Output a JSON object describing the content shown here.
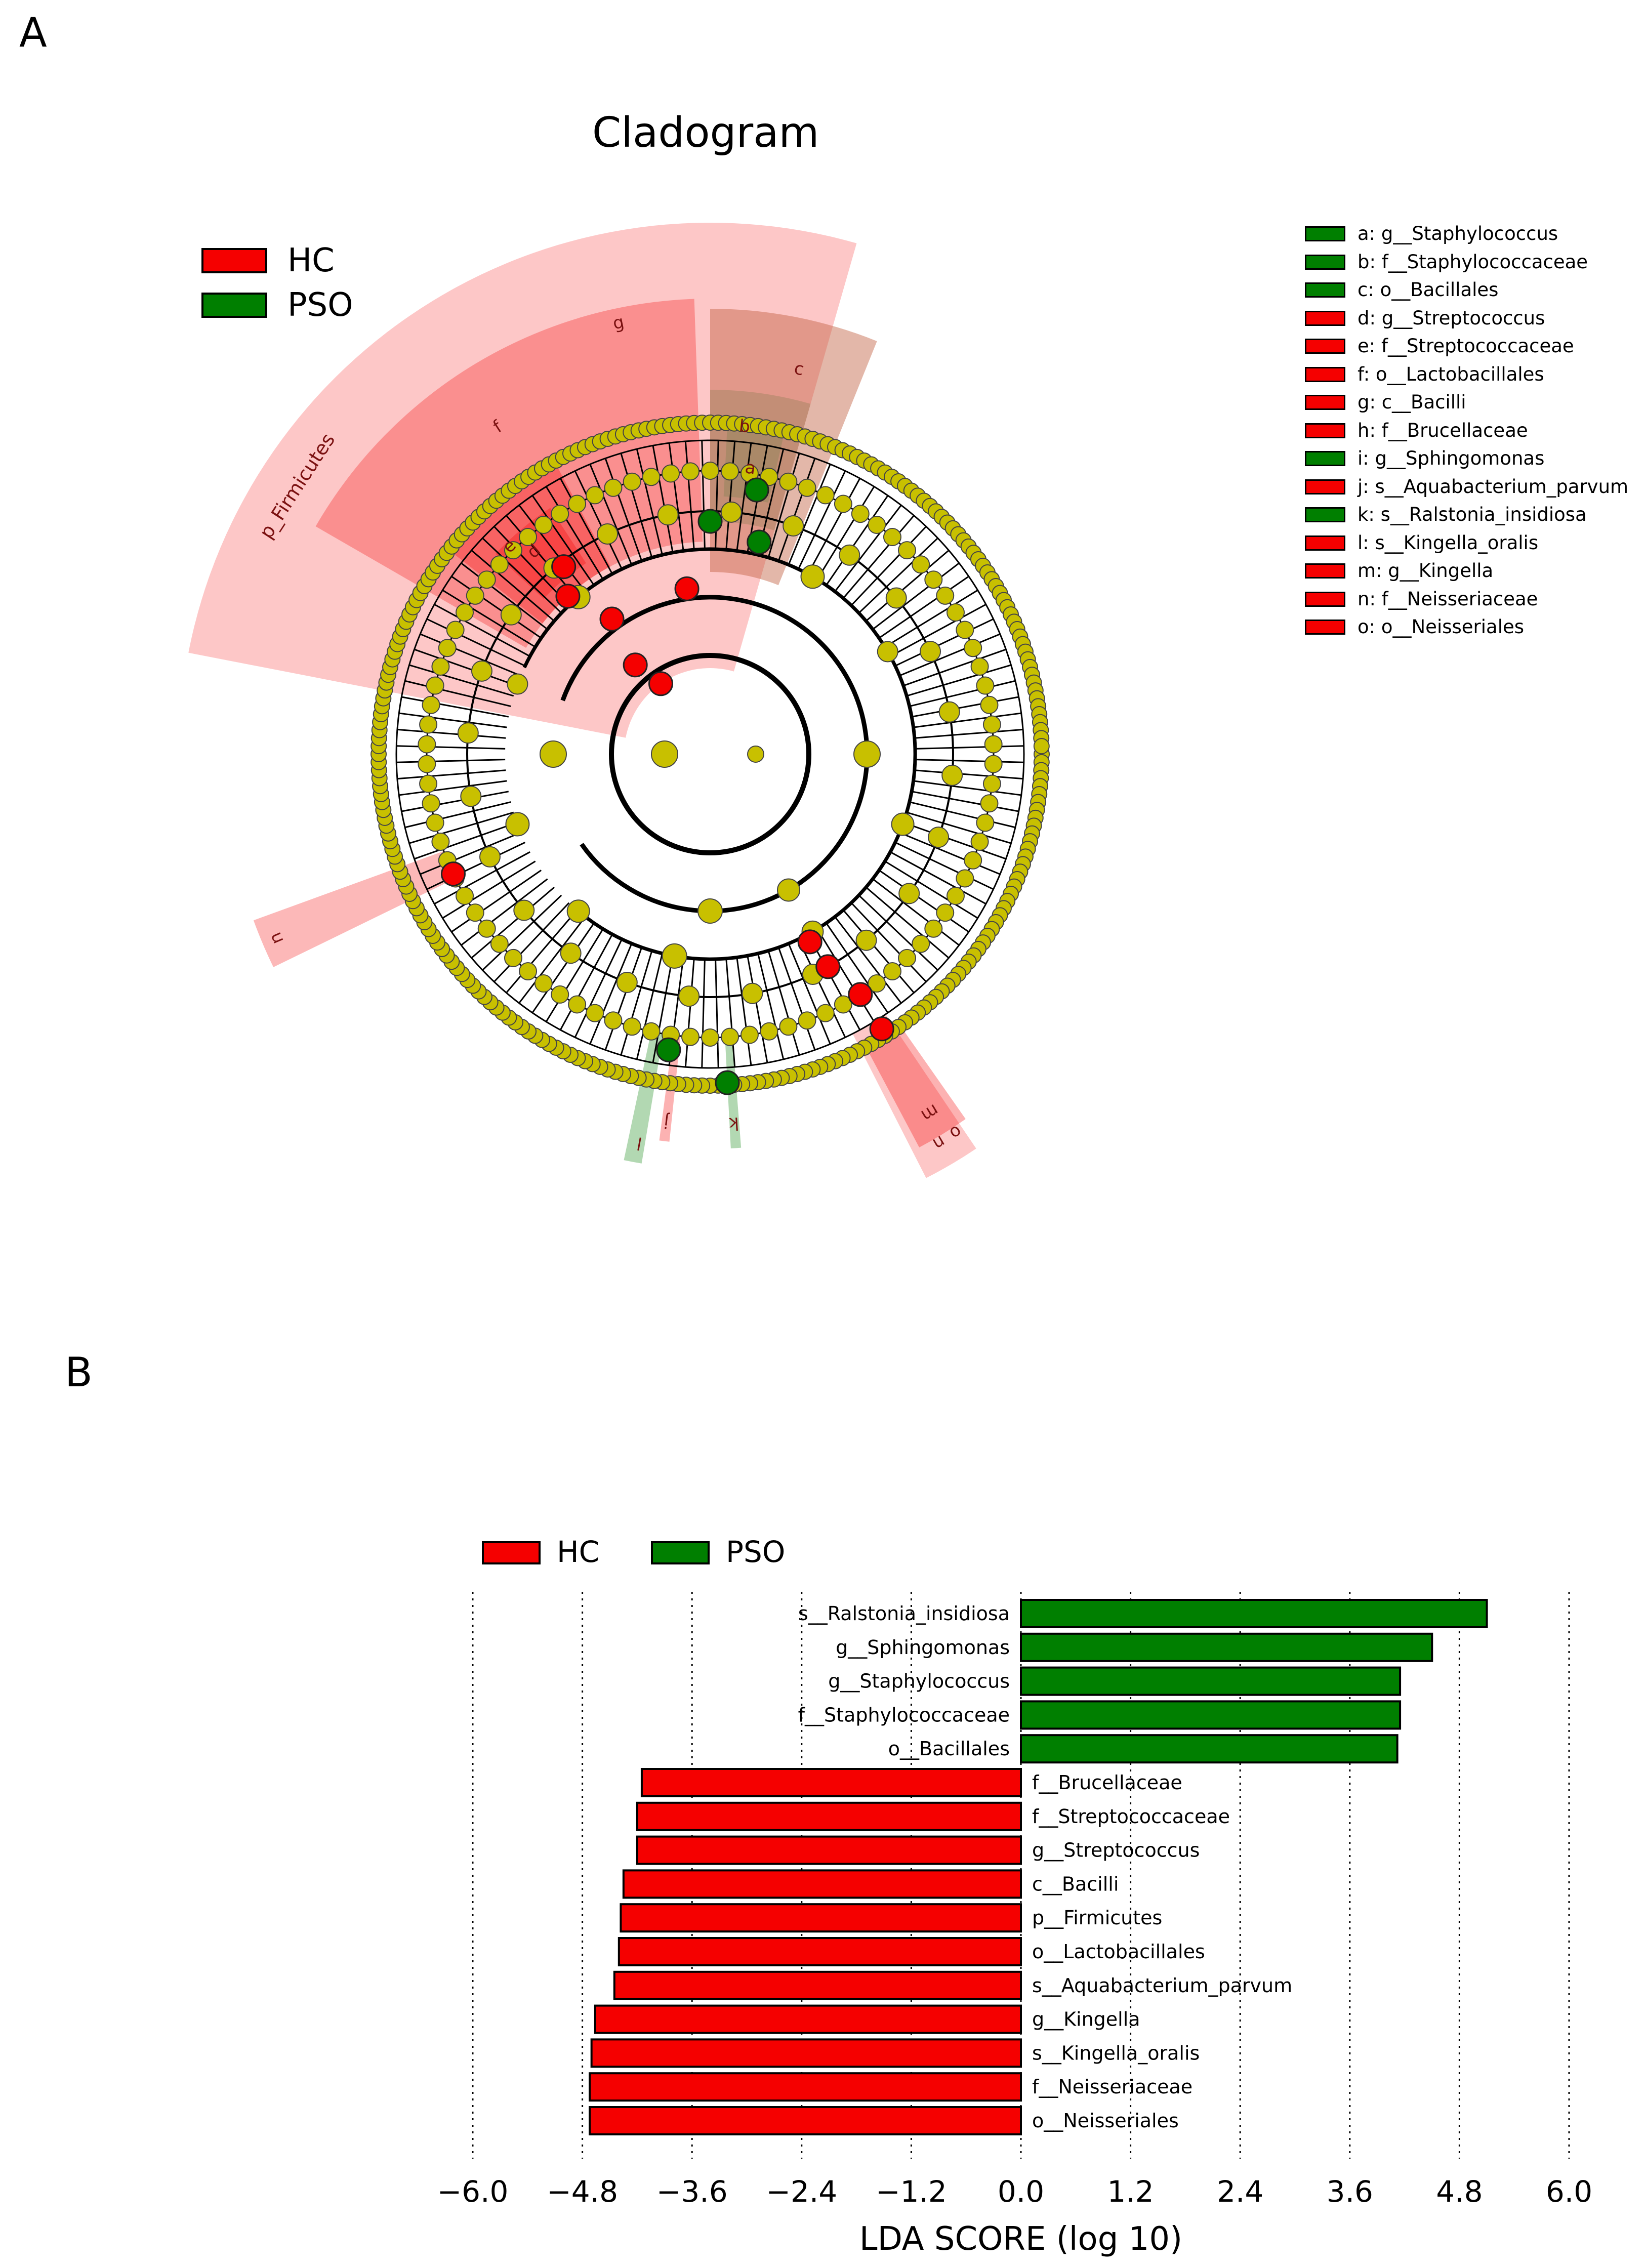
{
  "panels": {
    "a": "A",
    "b": "B"
  },
  "cladogram": {
    "title": "Cladogram",
    "legend": [
      {
        "label": "HC",
        "color": "#f50000"
      },
      {
        "label": "PSO",
        "color": "#007f00"
      }
    ],
    "phylum_label": "p_Firmicutes",
    "sector_letters": [
      "a",
      "b",
      "c",
      "d",
      "e",
      "f",
      "g",
      "l",
      "j",
      "k",
      "m",
      "n",
      "o",
      "n"
    ],
    "key": [
      {
        "text": "a: g__Staphylococcus",
        "group": "PSO"
      },
      {
        "text": "b: f__Staphylococcaceae",
        "group": "PSO"
      },
      {
        "text": "c: o__Bacillales",
        "group": "PSO"
      },
      {
        "text": "d: g__Streptococcus",
        "group": "HC"
      },
      {
        "text": "e: f__Streptococcaceae",
        "group": "HC"
      },
      {
        "text": "f: o__Lactobacillales",
        "group": "HC"
      },
      {
        "text": "g: c__Bacilli",
        "group": "HC"
      },
      {
        "text": "h: f__Brucellaceae",
        "group": "HC"
      },
      {
        "text": "i: g__Sphingomonas",
        "group": "PSO"
      },
      {
        "text": "j: s__Aquabacterium_parvum",
        "group": "HC"
      },
      {
        "text": "k: s__Ralstonia_insidiosa",
        "group": "PSO"
      },
      {
        "text": "l: s__Kingella_oralis",
        "group": "HC"
      },
      {
        "text": "m: g__Kingella",
        "group": "HC"
      },
      {
        "text": "n: f__Neisseriaceae",
        "group": "HC"
      },
      {
        "text": "o: o__Neisseriales",
        "group": "HC"
      }
    ],
    "colors": {
      "HC": "#f50000",
      "PSO": "#007f00",
      "node": "#c8c000"
    }
  },
  "chart_data": {
    "type": "bar",
    "orientation": "horizontal",
    "title": "",
    "xlabel": "LDA SCORE (log 10)",
    "xlim": [
      -6.0,
      6.0
    ],
    "xticks": [
      -6.0,
      -4.8,
      -3.6,
      -2.4,
      -1.2,
      0.0,
      1.2,
      2.4,
      3.6,
      4.8,
      6.0
    ],
    "xtick_labels": [
      "−6.0",
      "−4.8",
      "−3.6",
      "−2.4",
      "−1.2",
      "0.0",
      "1.2",
      "2.4",
      "3.6",
      "4.8",
      "6.0"
    ],
    "grid": "vertical dotted",
    "legend": [
      {
        "label": "HC",
        "color": "#f50000"
      },
      {
        "label": "PSO",
        "color": "#007f00"
      }
    ],
    "legend_position": "top-left",
    "bars": [
      {
        "label": "s__Ralstonia_insidiosa",
        "value": 5.1,
        "group": "PSO"
      },
      {
        "label": "g__Sphingomonas",
        "value": 4.5,
        "group": "PSO"
      },
      {
        "label": "g__Staphylococcus",
        "value": 4.15,
        "group": "PSO"
      },
      {
        "label": "f__Staphylococcaceae",
        "value": 4.15,
        "group": "PSO"
      },
      {
        "label": "o__Bacillales",
        "value": 4.12,
        "group": "PSO"
      },
      {
        "label": "f__Brucellaceae",
        "value": -4.15,
        "group": "HC"
      },
      {
        "label": "f__Streptococcaceae",
        "value": -4.2,
        "group": "HC"
      },
      {
        "label": "g__Streptococcus",
        "value": -4.2,
        "group": "HC"
      },
      {
        "label": "c__Bacilli",
        "value": -4.35,
        "group": "HC"
      },
      {
        "label": "p__Firmicutes",
        "value": -4.38,
        "group": "HC"
      },
      {
        "label": "o__Lactobacillales",
        "value": -4.4,
        "group": "HC"
      },
      {
        "label": "s__Aquabacterium_parvum",
        "value": -4.45,
        "group": "HC"
      },
      {
        "label": "g__Kingella",
        "value": -4.66,
        "group": "HC"
      },
      {
        "label": "s__Kingella_oralis",
        "value": -4.7,
        "group": "HC"
      },
      {
        "label": "f__Neisseriaceae",
        "value": -4.72,
        "group": "HC"
      },
      {
        "label": "o__Neisseriales",
        "value": -4.72,
        "group": "HC"
      }
    ]
  }
}
